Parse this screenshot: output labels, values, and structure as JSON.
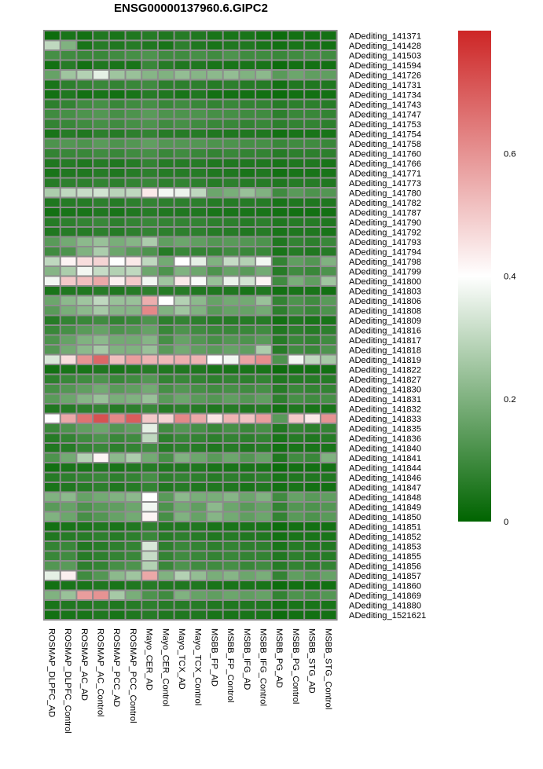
{
  "chart_data": {
    "type": "heatmap",
    "title": "ENSG00000137960.6.GIPC2",
    "columns": [
      "ROSMAP_DLPFC_AD",
      "ROSMAP_DLPFC_Control",
      "ROSMAP_AC_AD",
      "ROSMAP_AC_Control",
      "ROSMAP_PCC_AD",
      "ROSMAP_PCC_Control",
      "Mayo_CER_AD",
      "Mayo_CER_Control",
      "Mayo_TCX_AD",
      "Mayo_TCX_Control",
      "MSBB_FP_AD",
      "MSBB_FP_Control",
      "MSBB_IFG_AD",
      "MSBB_IFG_Control",
      "MSBB_PG_AD",
      "MSBB_PG_Control",
      "MSBB_STG_AD",
      "MSBB_STG_Control"
    ],
    "rows": [
      "ADediting_141371",
      "ADediting_141428",
      "ADediting_141503",
      "ADediting_141594",
      "ADediting_141726",
      "ADediting_141731",
      "ADediting_141734",
      "ADediting_141743",
      "ADediting_141747",
      "ADediting_141753",
      "ADediting_141754",
      "ADediting_141758",
      "ADediting_141760",
      "ADediting_141766",
      "ADediting_141771",
      "ADediting_141773",
      "ADediting_141780",
      "ADediting_141782",
      "ADediting_141787",
      "ADediting_141790",
      "ADediting_141792",
      "ADediting_141793",
      "ADediting_141794",
      "ADediting_141798",
      "ADediting_141799",
      "ADediting_141800",
      "ADediting_141803",
      "ADediting_141806",
      "ADediting_141808",
      "ADediting_141809",
      "ADediting_141816",
      "ADediting_141817",
      "ADediting_141818",
      "ADediting_141819",
      "ADediting_141822",
      "ADediting_141827",
      "ADediting_141830",
      "ADediting_141831",
      "ADediting_141832",
      "ADediting_141833",
      "ADediting_141835",
      "ADediting_141836",
      "ADediting_141840",
      "ADediting_141841",
      "ADediting_141844",
      "ADediting_141846",
      "ADediting_141847",
      "ADediting_141848",
      "ADediting_141849",
      "ADediting_141850",
      "ADediting_141851",
      "ADediting_141852",
      "ADediting_141853",
      "ADediting_141855",
      "ADediting_141856",
      "ADediting_141857",
      "ADediting_141860",
      "ADediting_141869",
      "ADediting_141880",
      "ADediting_1521621"
    ],
    "values": [
      [
        0.02,
        0.04,
        0.03,
        0.05,
        0.04,
        0.05,
        0.06,
        0.05,
        0.06,
        0.05,
        0.04,
        0.04,
        0.04,
        0.03,
        0.02,
        0.03,
        0.03,
        0.03
      ],
      [
        0.3,
        0.2,
        0.04,
        0.06,
        0.05,
        0.06,
        0.05,
        0.04,
        0.07,
        0.05,
        0.04,
        0.05,
        0.05,
        0.04,
        0.03,
        0.04,
        0.04,
        0.03
      ],
      [
        0.11,
        0.1,
        0.09,
        0.09,
        0.1,
        0.11,
        0.12,
        0.1,
        0.1,
        0.11,
        0.1,
        0.12,
        0.1,
        0.1,
        0.09,
        0.1,
        0.11,
        0.1
      ],
      [
        0.03,
        0.06,
        0.03,
        0.05,
        0.04,
        0.04,
        0.09,
        0.06,
        0.05,
        0.05,
        0.04,
        0.04,
        0.04,
        0.04,
        0.02,
        0.03,
        0.03,
        0.03
      ],
      [
        0.16,
        0.25,
        0.28,
        0.36,
        0.25,
        0.24,
        0.21,
        0.2,
        0.23,
        0.21,
        0.22,
        0.23,
        0.2,
        0.22,
        0.14,
        0.17,
        0.15,
        0.15
      ],
      [
        0.04,
        0.07,
        0.08,
        0.09,
        0.08,
        0.09,
        0.1,
        0.07,
        0.07,
        0.07,
        0.06,
        0.07,
        0.06,
        0.06,
        0.03,
        0.05,
        0.05,
        0.05
      ],
      [
        0.03,
        0.05,
        0.03,
        0.04,
        0.03,
        0.04,
        0.06,
        0.05,
        0.04,
        0.05,
        0.03,
        0.03,
        0.03,
        0.03,
        0.02,
        0.03,
        0.03,
        0.03
      ],
      [
        0.07,
        0.08,
        0.1,
        0.11,
        0.09,
        0.1,
        0.11,
        0.09,
        0.1,
        0.09,
        0.08,
        0.09,
        0.08,
        0.08,
        0.06,
        0.07,
        0.07,
        0.06
      ],
      [
        0.1,
        0.11,
        0.12,
        0.13,
        0.11,
        0.12,
        0.14,
        0.12,
        0.12,
        0.12,
        0.11,
        0.11,
        0.1,
        0.1,
        0.07,
        0.09,
        0.09,
        0.08
      ],
      [
        0.08,
        0.09,
        0.1,
        0.11,
        0.1,
        0.11,
        0.12,
        0.1,
        0.11,
        0.1,
        0.09,
        0.09,
        0.08,
        0.09,
        0.07,
        0.08,
        0.08,
        0.07
      ],
      [
        0.04,
        0.06,
        0.05,
        0.07,
        0.06,
        0.07,
        0.08,
        0.06,
        0.06,
        0.06,
        0.05,
        0.05,
        0.05,
        0.05,
        0.03,
        0.04,
        0.04,
        0.04
      ],
      [
        0.12,
        0.13,
        0.12,
        0.14,
        0.12,
        0.13,
        0.15,
        0.13,
        0.13,
        0.13,
        0.12,
        0.12,
        0.11,
        0.11,
        0.09,
        0.1,
        0.1,
        0.09
      ],
      [
        0.08,
        0.09,
        0.09,
        0.1,
        0.09,
        0.1,
        0.11,
        0.09,
        0.1,
        0.09,
        0.08,
        0.09,
        0.08,
        0.08,
        0.06,
        0.07,
        0.07,
        0.07
      ],
      [
        0.05,
        0.06,
        0.05,
        0.06,
        0.05,
        0.06,
        0.08,
        0.06,
        0.06,
        0.06,
        0.05,
        0.05,
        0.05,
        0.05,
        0.04,
        0.05,
        0.05,
        0.04
      ],
      [
        0.04,
        0.05,
        0.05,
        0.06,
        0.05,
        0.06,
        0.07,
        0.06,
        0.06,
        0.06,
        0.05,
        0.05,
        0.04,
        0.05,
        0.03,
        0.04,
        0.04,
        0.04
      ],
      [
        0.06,
        0.07,
        0.07,
        0.08,
        0.07,
        0.08,
        0.09,
        0.07,
        0.08,
        0.07,
        0.06,
        0.07,
        0.06,
        0.06,
        0.05,
        0.06,
        0.06,
        0.05
      ],
      [
        0.27,
        0.3,
        0.31,
        0.33,
        0.29,
        0.3,
        0.44,
        0.38,
        0.37,
        0.3,
        0.17,
        0.19,
        0.24,
        0.2,
        0.1,
        0.14,
        0.12,
        0.13
      ],
      [
        0.05,
        0.06,
        0.06,
        0.07,
        0.06,
        0.07,
        0.08,
        0.07,
        0.07,
        0.07,
        0.06,
        0.06,
        0.06,
        0.06,
        0.04,
        0.05,
        0.05,
        0.05
      ],
      [
        0.03,
        0.04,
        0.04,
        0.05,
        0.04,
        0.05,
        0.06,
        0.05,
        0.05,
        0.05,
        0.04,
        0.04,
        0.04,
        0.04,
        0.03,
        0.03,
        0.03,
        0.03
      ],
      [
        0.06,
        0.07,
        0.08,
        0.09,
        0.07,
        0.08,
        0.09,
        0.08,
        0.08,
        0.08,
        0.07,
        0.07,
        0.06,
        0.07,
        0.05,
        0.06,
        0.06,
        0.05
      ],
      [
        0.05,
        0.06,
        0.06,
        0.07,
        0.06,
        0.07,
        0.08,
        0.07,
        0.07,
        0.07,
        0.06,
        0.06,
        0.05,
        0.06,
        0.04,
        0.05,
        0.05,
        0.04
      ],
      [
        0.14,
        0.18,
        0.22,
        0.24,
        0.19,
        0.21,
        0.27,
        0.15,
        0.17,
        0.15,
        0.13,
        0.14,
        0.13,
        0.12,
        0.05,
        0.08,
        0.07,
        0.09
      ],
      [
        0.1,
        0.12,
        0.2,
        0.27,
        0.17,
        0.14,
        0.12,
        0.06,
        0.09,
        0.08,
        0.08,
        0.1,
        0.09,
        0.09,
        0.04,
        0.06,
        0.05,
        0.06
      ],
      [
        0.3,
        0.42,
        0.46,
        0.48,
        0.4,
        0.44,
        0.3,
        0.18,
        0.4,
        0.36,
        0.2,
        0.31,
        0.28,
        0.38,
        0.08,
        0.15,
        0.13,
        0.2
      ],
      [
        0.21,
        0.27,
        0.38,
        0.31,
        0.28,
        0.3,
        0.17,
        0.12,
        0.2,
        0.17,
        0.12,
        0.16,
        0.14,
        0.18,
        0.06,
        0.1,
        0.09,
        0.12
      ],
      [
        0.38,
        0.5,
        0.52,
        0.56,
        0.43,
        0.5,
        0.38,
        0.25,
        0.44,
        0.39,
        0.24,
        0.37,
        0.33,
        0.42,
        0.1,
        0.19,
        0.15,
        0.25
      ],
      [
        0.04,
        0.05,
        0.05,
        0.06,
        0.05,
        0.06,
        0.07,
        0.06,
        0.06,
        0.05,
        0.05,
        0.05,
        0.04,
        0.05,
        0.03,
        0.04,
        0.04,
        0.03
      ],
      [
        0.17,
        0.22,
        0.25,
        0.3,
        0.24,
        0.24,
        0.55,
        0.4,
        0.28,
        0.22,
        0.16,
        0.18,
        0.18,
        0.24,
        0.08,
        0.12,
        0.1,
        0.14
      ],
      [
        0.14,
        0.19,
        0.22,
        0.26,
        0.21,
        0.21,
        0.62,
        0.2,
        0.25,
        0.2,
        0.14,
        0.16,
        0.16,
        0.18,
        0.07,
        0.11,
        0.09,
        0.12
      ],
      [
        0.06,
        0.08,
        0.09,
        0.1,
        0.08,
        0.09,
        0.12,
        0.07,
        0.08,
        0.07,
        0.06,
        0.06,
        0.06,
        0.06,
        0.03,
        0.05,
        0.04,
        0.04
      ],
      [
        0.09,
        0.11,
        0.14,
        0.16,
        0.12,
        0.13,
        0.16,
        0.09,
        0.12,
        0.1,
        0.09,
        0.09,
        0.09,
        0.1,
        0.05,
        0.07,
        0.06,
        0.07
      ],
      [
        0.12,
        0.16,
        0.2,
        0.22,
        0.18,
        0.18,
        0.21,
        0.11,
        0.16,
        0.13,
        0.11,
        0.13,
        0.12,
        0.14,
        0.06,
        0.09,
        0.08,
        0.1
      ],
      [
        0.13,
        0.18,
        0.22,
        0.26,
        0.2,
        0.2,
        0.24,
        0.14,
        0.18,
        0.15,
        0.14,
        0.16,
        0.15,
        0.27,
        0.06,
        0.1,
        0.09,
        0.12
      ],
      [
        0.34,
        0.46,
        0.6,
        0.68,
        0.52,
        0.58,
        0.54,
        0.53,
        0.55,
        0.54,
        0.4,
        0.38,
        0.57,
        0.61,
        0.12,
        0.38,
        0.3,
        0.26
      ],
      [
        0.03,
        0.04,
        0.04,
        0.05,
        0.04,
        0.05,
        0.06,
        0.05,
        0.05,
        0.05,
        0.04,
        0.04,
        0.04,
        0.04,
        0.02,
        0.03,
        0.03,
        0.03
      ],
      [
        0.07,
        0.09,
        0.1,
        0.12,
        0.09,
        0.1,
        0.13,
        0.08,
        0.09,
        0.08,
        0.07,
        0.08,
        0.07,
        0.08,
        0.05,
        0.06,
        0.06,
        0.06
      ],
      [
        0.11,
        0.13,
        0.15,
        0.18,
        0.14,
        0.15,
        0.18,
        0.11,
        0.13,
        0.11,
        0.1,
        0.11,
        0.1,
        0.11,
        0.06,
        0.09,
        0.08,
        0.08
      ],
      [
        0.14,
        0.17,
        0.21,
        0.24,
        0.19,
        0.2,
        0.24,
        0.14,
        0.17,
        0.14,
        0.13,
        0.15,
        0.13,
        0.15,
        0.07,
        0.11,
        0.1,
        0.11
      ],
      [
        0.05,
        0.06,
        0.07,
        0.08,
        0.06,
        0.07,
        0.09,
        0.06,
        0.07,
        0.06,
        0.05,
        0.06,
        0.05,
        0.06,
        0.03,
        0.05,
        0.04,
        0.04
      ],
      [
        0.4,
        0.56,
        0.66,
        0.72,
        0.62,
        0.7,
        0.5,
        0.48,
        0.62,
        0.56,
        0.45,
        0.54,
        0.51,
        0.58,
        0.14,
        0.5,
        0.44,
        0.6
      ],
      [
        0.09,
        0.12,
        0.15,
        0.17,
        0.13,
        0.15,
        0.36,
        0.1,
        0.13,
        0.11,
        0.09,
        0.11,
        0.09,
        0.11,
        0.05,
        0.08,
        0.07,
        0.08
      ],
      [
        0.06,
        0.08,
        0.1,
        0.12,
        0.09,
        0.1,
        0.3,
        0.07,
        0.09,
        0.08,
        0.07,
        0.08,
        0.07,
        0.08,
        0.04,
        0.06,
        0.05,
        0.06
      ],
      [
        0.05,
        0.06,
        0.08,
        0.09,
        0.07,
        0.08,
        0.1,
        0.06,
        0.07,
        0.06,
        0.05,
        0.06,
        0.05,
        0.06,
        0.03,
        0.04,
        0.04,
        0.04
      ],
      [
        0.12,
        0.18,
        0.28,
        0.42,
        0.22,
        0.27,
        0.18,
        0.11,
        0.2,
        0.17,
        0.14,
        0.17,
        0.13,
        0.16,
        0.05,
        0.1,
        0.09,
        0.2
      ],
      [
        0.03,
        0.04,
        0.04,
        0.05,
        0.04,
        0.05,
        0.06,
        0.05,
        0.05,
        0.05,
        0.04,
        0.04,
        0.04,
        0.04,
        0.02,
        0.03,
        0.03,
        0.03
      ],
      [
        0.06,
        0.07,
        0.08,
        0.09,
        0.07,
        0.08,
        0.11,
        0.07,
        0.08,
        0.07,
        0.06,
        0.07,
        0.06,
        0.07,
        0.04,
        0.05,
        0.05,
        0.05
      ],
      [
        0.04,
        0.05,
        0.06,
        0.07,
        0.05,
        0.06,
        0.08,
        0.05,
        0.06,
        0.05,
        0.05,
        0.05,
        0.04,
        0.05,
        0.03,
        0.04,
        0.03,
        0.03
      ],
      [
        0.2,
        0.22,
        0.16,
        0.18,
        0.2,
        0.22,
        0.4,
        0.14,
        0.22,
        0.19,
        0.19,
        0.21,
        0.17,
        0.2,
        0.1,
        0.16,
        0.14,
        0.15
      ],
      [
        0.14,
        0.16,
        0.12,
        0.14,
        0.15,
        0.17,
        0.38,
        0.12,
        0.18,
        0.15,
        0.22,
        0.17,
        0.14,
        0.16,
        0.08,
        0.13,
        0.12,
        0.13
      ],
      [
        0.2,
        0.17,
        0.11,
        0.13,
        0.16,
        0.18,
        0.42,
        0.11,
        0.2,
        0.16,
        0.21,
        0.18,
        0.15,
        0.17,
        0.08,
        0.14,
        0.12,
        0.14
      ],
      [
        0.03,
        0.04,
        0.04,
        0.05,
        0.04,
        0.05,
        0.07,
        0.05,
        0.05,
        0.05,
        0.04,
        0.04,
        0.04,
        0.04,
        0.02,
        0.03,
        0.03,
        0.03
      ],
      [
        0.05,
        0.06,
        0.06,
        0.07,
        0.06,
        0.07,
        0.09,
        0.06,
        0.07,
        0.06,
        0.05,
        0.06,
        0.05,
        0.05,
        0.03,
        0.04,
        0.04,
        0.04
      ],
      [
        0.08,
        0.09,
        0.05,
        0.06,
        0.07,
        0.08,
        0.34,
        0.07,
        0.09,
        0.08,
        0.07,
        0.08,
        0.07,
        0.07,
        0.04,
        0.06,
        0.05,
        0.05
      ],
      [
        0.09,
        0.1,
        0.06,
        0.07,
        0.08,
        0.09,
        0.31,
        0.08,
        0.1,
        0.09,
        0.08,
        0.09,
        0.08,
        0.08,
        0.05,
        0.07,
        0.06,
        0.06
      ],
      [
        0.13,
        0.14,
        0.07,
        0.08,
        0.11,
        0.12,
        0.28,
        0.09,
        0.12,
        0.1,
        0.1,
        0.11,
        0.09,
        0.1,
        0.06,
        0.08,
        0.07,
        0.08
      ],
      [
        0.36,
        0.43,
        0.1,
        0.13,
        0.22,
        0.25,
        0.56,
        0.2,
        0.28,
        0.23,
        0.19,
        0.21,
        0.17,
        0.19,
        0.08,
        0.15,
        0.13,
        0.16
      ],
      [
        0.03,
        0.04,
        0.04,
        0.05,
        0.04,
        0.05,
        0.06,
        0.05,
        0.05,
        0.05,
        0.04,
        0.04,
        0.04,
        0.04,
        0.02,
        0.03,
        0.03,
        0.03
      ],
      [
        0.2,
        0.24,
        0.58,
        0.6,
        0.26,
        0.19,
        0.12,
        0.1,
        0.2,
        0.16,
        0.15,
        0.17,
        0.15,
        0.16,
        0.08,
        0.12,
        0.11,
        0.13
      ],
      [
        0.04,
        0.05,
        0.05,
        0.06,
        0.05,
        0.06,
        0.07,
        0.06,
        0.06,
        0.06,
        0.05,
        0.05,
        0.05,
        0.05,
        0.03,
        0.04,
        0.04,
        0.04
      ],
      [
        0.03,
        0.04,
        0.04,
        0.05,
        0.04,
        0.05,
        0.06,
        0.05,
        0.05,
        0.05,
        0.04,
        0.04,
        0.04,
        0.04,
        0.02,
        0.03,
        0.03,
        0.03
      ]
    ],
    "color_scale": {
      "min": 0,
      "mid": 0.4,
      "max": 0.8,
      "low_color": "#006400",
      "mid_color": "#ffffff",
      "high_color": "#cd2626"
    },
    "legend": {
      "ticks": [
        0,
        0.2,
        0.4,
        0.6
      ],
      "tick_labels": [
        "0",
        "0.2",
        "0.4",
        "0.6"
      ],
      "position": "right"
    },
    "cell_border_color": "#8c8c8c"
  }
}
